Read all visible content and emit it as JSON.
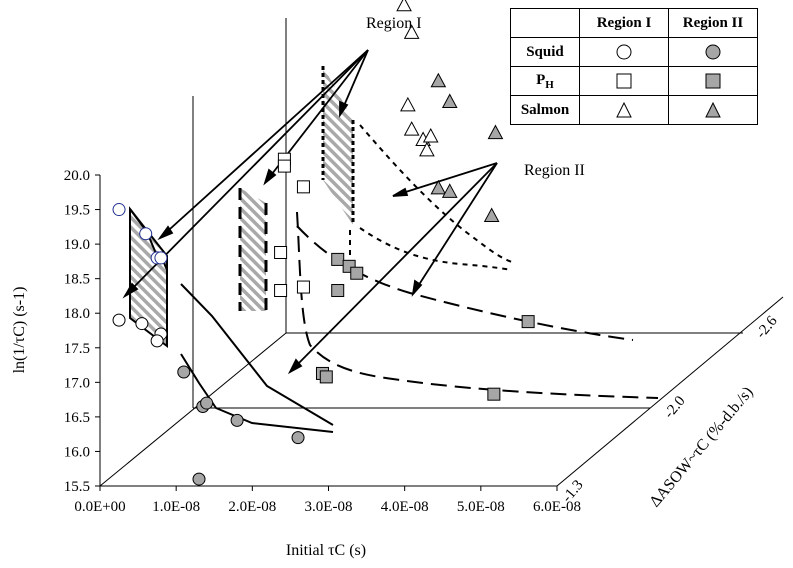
{
  "chart_data": {
    "type": "scatter",
    "title": "",
    "xlabel": "Initial τC (s)",
    "ylabel": "ln(1/τC) (s-1)",
    "zlabel": "ΔASOW~τC (%-d.b./s)",
    "x_ticks": [
      "0.0E+00",
      "1.0E-08",
      "2.0E-08",
      "3.0E-08",
      "4.0E-08",
      "5.0E-08",
      "6.0E-08"
    ],
    "y_ticks": [
      "15.5",
      "16.0",
      "16.5",
      "17.0",
      "17.5",
      "18.0",
      "18.5",
      "19.0",
      "19.5",
      "20.0"
    ],
    "z_ticks": [
      "-1.3",
      "-2.0",
      "-2.6"
    ],
    "xlim": [
      0,
      6e-08
    ],
    "ylim": [
      15.5,
      20.0
    ],
    "grid": false,
    "legend_position": "top-right",
    "legend": {
      "columns": [
        "Region I",
        "Region II"
      ],
      "rows": [
        "Squid",
        "PH",
        "Salmon"
      ],
      "markers": {
        "Squid": "circle",
        "PH": "square",
        "Salmon": "triangle"
      },
      "region_fill": {
        "Region I": "#ffffff",
        "Region II": "#a6a6a6"
      }
    },
    "annotations": [
      "Region I",
      "Region II"
    ],
    "series": [
      {
        "name": "Squid",
        "marker": "circle",
        "depth": "-1.3",
        "region1": [
          {
            "x": 2.5e-09,
            "y": 19.5
          },
          {
            "x": 6e-09,
            "y": 19.15
          },
          {
            "x": 7.5e-09,
            "y": 18.8
          },
          {
            "x": 8e-09,
            "y": 18.8
          },
          {
            "x": 2.5e-09,
            "y": 17.9
          },
          {
            "x": 5.5e-09,
            "y": 17.85
          },
          {
            "x": 8e-09,
            "y": 17.7
          },
          {
            "x": 7.5e-09,
            "y": 17.6
          }
        ],
        "region2": [
          {
            "x": 1.1e-08,
            "y": 17.15
          },
          {
            "x": 1.35e-08,
            "y": 16.65
          },
          {
            "x": 1.8e-08,
            "y": 16.45
          },
          {
            "x": 2.6e-08,
            "y": 16.2
          },
          {
            "x": 1.4e-08,
            "y": 16.7
          },
          {
            "x": 1.3e-08,
            "y": 15.6
          }
        ]
      },
      {
        "name": "PH",
        "marker": "square",
        "depth": "-2.0",
        "region1": [
          {
            "x": 1.2e-08,
            "y": 19.1
          },
          {
            "x": 1.2e-08,
            "y": 19.0
          },
          {
            "x": 1.45e-08,
            "y": 18.7
          },
          {
            "x": 1.15e-08,
            "y": 17.75
          },
          {
            "x": 1.15e-08,
            "y": 17.2
          },
          {
            "x": 1.45e-08,
            "y": 17.25
          }
        ],
        "region2": [
          {
            "x": 1.9e-08,
            "y": 17.65
          },
          {
            "x": 2.05e-08,
            "y": 17.55
          },
          {
            "x": 2.15e-08,
            "y": 17.45
          },
          {
            "x": 1.9e-08,
            "y": 17.2
          },
          {
            "x": 4.4e-08,
            "y": 16.75
          },
          {
            "x": 1.7e-08,
            "y": 16.0
          },
          {
            "x": 1.75e-08,
            "y": 15.95
          },
          {
            "x": 3.95e-08,
            "y": 15.7
          }
        ]
      },
      {
        "name": "Salmon",
        "marker": "triangle",
        "depth": "-2.6",
        "region1": [
          {
            "x": 1.55e-08,
            "y": 20.55
          },
          {
            "x": 1.55e-08,
            "y": 20.25
          },
          {
            "x": 1.65e-08,
            "y": 19.85
          },
          {
            "x": 1.6e-08,
            "y": 18.8
          },
          {
            "x": 1.65e-08,
            "y": 18.45
          },
          {
            "x": 1.8e-08,
            "y": 18.3
          },
          {
            "x": 1.85e-08,
            "y": 18.15
          },
          {
            "x": 1.9e-08,
            "y": 18.35
          }
        ],
        "region2": [
          {
            "x": 2e-08,
            "y": 19.15
          },
          {
            "x": 2.15e-08,
            "y": 18.85
          },
          {
            "x": 2.75e-08,
            "y": 18.4
          },
          {
            "x": 2e-08,
            "y": 17.6
          },
          {
            "x": 2.15e-08,
            "y": 17.55
          },
          {
            "x": 2.7e-08,
            "y": 17.2
          }
        ]
      }
    ]
  }
}
